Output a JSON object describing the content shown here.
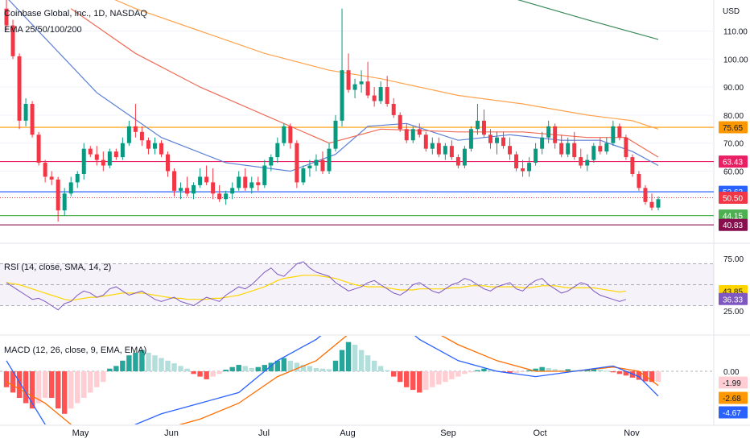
{
  "chart_data": {
    "type": "candlestick",
    "title": "Coinbase Global, Inc., 1D, NASDAQ",
    "indicator_legend": "EMA 25/50/100/200",
    "currency": "USD",
    "x_labels": [
      "May",
      "Jun",
      "Jul",
      "Aug",
      "Sep",
      "Oct",
      "Nov"
    ],
    "price_axis": {
      "ticks": [
        110,
        100,
        90,
        80,
        70,
        60
      ],
      "tick_labels": [
        "110.00",
        "100.00",
        "90.00",
        "80.00",
        "70.00",
        "60.00"
      ]
    },
    "horizontal_levels": [
      {
        "value": 75.65,
        "label": "75.65",
        "color": "#ff9800"
      },
      {
        "value": 63.43,
        "label": "63.43",
        "color": "#e91e63"
      },
      {
        "value": 52.63,
        "label": "52.63",
        "color": "#2962ff"
      },
      {
        "value": 44.15,
        "label": "44.15",
        "color": "#4caf50"
      },
      {
        "value": 40.83,
        "label": "40.83",
        "color": "#880e4f"
      }
    ],
    "last_price": {
      "value": 50.5,
      "label": "50.50",
      "color": "#f23645"
    },
    "candles": [
      [
        118,
        122,
        110,
        112
      ],
      [
        112,
        114,
        100,
        101
      ],
      [
        101,
        102,
        75,
        78
      ],
      [
        78,
        86,
        76,
        84
      ],
      [
        84,
        85,
        72,
        73
      ],
      [
        73,
        74,
        62,
        63
      ],
      [
        63,
        64,
        56,
        58
      ],
      [
        58,
        60,
        55,
        57
      ],
      [
        57,
        58,
        42,
        46
      ],
      [
        46,
        54,
        44,
        52
      ],
      [
        52,
        58,
        51,
        56
      ],
      [
        56,
        60,
        54,
        59
      ],
      [
        59,
        70,
        57,
        68
      ],
      [
        68,
        69,
        65,
        66
      ],
      [
        66,
        69,
        62,
        64
      ],
      [
        64,
        67,
        60,
        62
      ],
      [
        62,
        68,
        61,
        67
      ],
      [
        67,
        68,
        64,
        65
      ],
      [
        65,
        72,
        64,
        70
      ],
      [
        70,
        78,
        69,
        76
      ],
      [
        76,
        84,
        72,
        74
      ],
      [
        74,
        76,
        69,
        71
      ],
      [
        71,
        72,
        66,
        68
      ],
      [
        68,
        72,
        66,
        70
      ],
      [
        70,
        71,
        65,
        66
      ],
      [
        66,
        67,
        58,
        60
      ],
      [
        60,
        61,
        51,
        53
      ],
      [
        53,
        56,
        50,
        54
      ],
      [
        54,
        58,
        51,
        52
      ],
      [
        52,
        56,
        50,
        55
      ],
      [
        55,
        61,
        54,
        58
      ],
      [
        58,
        62,
        55,
        56
      ],
      [
        56,
        61,
        50,
        52
      ],
      [
        52,
        55,
        49,
        50
      ],
      [
        50,
        53,
        48,
        52
      ],
      [
        52,
        56,
        50,
        54
      ],
      [
        54,
        60,
        53,
        58
      ],
      [
        58,
        61,
        53,
        54
      ],
      [
        54,
        58,
        52,
        56
      ],
      [
        56,
        58,
        53,
        55
      ],
      [
        55,
        64,
        54,
        62
      ],
      [
        62,
        66,
        60,
        65
      ],
      [
        65,
        72,
        63,
        70
      ],
      [
        70,
        77,
        69,
        76
      ],
      [
        76,
        77,
        68,
        70
      ],
      [
        70,
        71,
        54,
        56
      ],
      [
        56,
        62,
        55,
        61
      ],
      [
        61,
        64,
        58,
        62
      ],
      [
        62,
        66,
        60,
        64
      ],
      [
        64,
        67,
        59,
        60
      ],
      [
        60,
        70,
        59,
        68
      ],
      [
        68,
        80,
        67,
        78
      ],
      [
        78,
        118,
        76,
        96
      ],
      [
        96,
        102,
        88,
        89
      ],
      [
        89,
        93,
        86,
        91
      ],
      [
        91,
        96,
        88,
        92
      ],
      [
        92,
        99,
        86,
        87
      ],
      [
        87,
        90,
        83,
        85
      ],
      [
        85,
        92,
        84,
        90
      ],
      [
        90,
        94,
        83,
        84
      ],
      [
        84,
        86,
        79,
        80
      ],
      [
        80,
        81,
        74,
        75
      ],
      [
        75,
        77,
        70,
        71
      ],
      [
        71,
        76,
        70,
        75
      ],
      [
        75,
        77,
        72,
        73
      ],
      [
        73,
        74,
        67,
        68
      ],
      [
        68,
        72,
        66,
        70
      ],
      [
        70,
        72,
        65,
        66
      ],
      [
        66,
        70,
        64,
        69
      ],
      [
        69,
        71,
        64,
        65
      ],
      [
        65,
        66,
        61,
        62
      ],
      [
        62,
        69,
        61,
        68
      ],
      [
        68,
        76,
        67,
        75
      ],
      [
        75,
        84,
        73,
        78
      ],
      [
        78,
        82,
        72,
        73
      ],
      [
        73,
        75,
        68,
        70
      ],
      [
        70,
        74,
        66,
        72
      ],
      [
        72,
        74,
        68,
        69
      ],
      [
        69,
        72,
        64,
        66
      ],
      [
        66,
        67,
        60,
        61
      ],
      [
        61,
        64,
        58,
        60
      ],
      [
        60,
        65,
        58,
        63
      ],
      [
        63,
        70,
        62,
        68
      ],
      [
        68,
        74,
        66,
        72
      ],
      [
        72,
        78,
        70,
        76
      ],
      [
        76,
        77,
        68,
        70
      ],
      [
        70,
        73,
        65,
        66
      ],
      [
        66,
        72,
        65,
        70
      ],
      [
        70,
        74,
        64,
        65
      ],
      [
        65,
        68,
        61,
        62
      ],
      [
        62,
        66,
        60,
        64
      ],
      [
        64,
        70,
        63,
        69
      ],
      [
        69,
        72,
        66,
        67
      ],
      [
        67,
        72,
        66,
        70
      ],
      [
        70,
        78,
        69,
        76
      ],
      [
        76,
        77,
        71,
        72
      ],
      [
        72,
        73,
        64,
        65
      ],
      [
        65,
        66,
        58,
        59
      ],
      [
        59,
        60,
        53,
        54
      ],
      [
        54,
        55,
        48,
        49
      ],
      [
        49,
        52,
        46,
        47
      ],
      [
        47,
        51,
        46,
        50
      ]
    ],
    "ema_lines": [
      {
        "name": "EMA 25",
        "color": "#5b7fd6",
        "values": [
          [
            0,
            122
          ],
          [
            14,
            88
          ],
          [
            24,
            72
          ],
          [
            34,
            63
          ],
          [
            44,
            60
          ],
          [
            51,
            66
          ],
          [
            56,
            76
          ],
          [
            62,
            77
          ],
          [
            70,
            71
          ],
          [
            78,
            73
          ],
          [
            86,
            71
          ],
          [
            92,
            71
          ],
          [
            97,
            67
          ],
          [
            101,
            62
          ]
        ]
      },
      {
        "name": "EMA 50",
        "color": "#ef6c57",
        "values": [
          [
            10,
            118
          ],
          [
            20,
            102
          ],
          [
            30,
            90
          ],
          [
            40,
            80
          ],
          [
            50,
            70
          ],
          [
            58,
            75
          ],
          [
            70,
            74
          ],
          [
            80,
            74
          ],
          [
            90,
            72
          ],
          [
            96,
            72
          ],
          [
            101,
            65
          ]
        ]
      },
      {
        "name": "EMA 100",
        "color": "#ffa24d",
        "values": [
          [
            10,
            128
          ],
          [
            20,
            118
          ],
          [
            30,
            110
          ],
          [
            40,
            102
          ],
          [
            50,
            96
          ],
          [
            58,
            93
          ],
          [
            70,
            87
          ],
          [
            80,
            84
          ],
          [
            90,
            80
          ],
          [
            97,
            78
          ],
          [
            101,
            75
          ]
        ]
      },
      {
        "name": "EMA 200",
        "color": "#3c8a5a",
        "values": [
          [
            78,
            122
          ],
          [
            90,
            114
          ],
          [
            101,
            107
          ]
        ]
      }
    ],
    "rsi": {
      "legend": "RSI (14, close, SMA, 14, 2)",
      "ticks": [
        75,
        25
      ],
      "tick_labels": [
        "75.00",
        "25.00"
      ],
      "upper_band": 70,
      "lower_band": 30,
      "rsi_line_color": "#7e57c2",
      "sma_color": "#ffd500",
      "badge_sma": {
        "value": 43.85,
        "label": "43.85",
        "color": "#ffd500"
      },
      "badge_rsi": {
        "value": 36.33,
        "label": "36.33",
        "color": "#7e57c2"
      },
      "rsi_values": [
        52,
        48,
        44,
        40,
        36,
        37,
        34,
        30,
        26,
        32,
        34,
        40,
        44,
        42,
        38,
        40,
        46,
        48,
        44,
        40,
        42,
        44,
        40,
        36,
        34,
        36,
        38,
        34,
        32,
        30,
        34,
        38,
        36,
        34,
        40,
        44,
        48,
        46,
        50,
        56,
        62,
        66,
        60,
        58,
        64,
        70,
        72,
        66,
        62,
        60,
        58,
        52,
        48,
        44,
        46,
        48,
        52,
        54,
        50,
        46,
        42,
        40,
        44,
        50,
        52,
        48,
        44,
        42,
        46,
        50,
        52,
        56,
        54,
        50,
        46,
        44,
        48,
        50,
        52,
        46,
        44,
        50,
        54,
        56,
        50,
        46,
        42,
        44,
        48,
        52,
        50,
        44,
        40,
        38,
        36,
        34,
        36
      ],
      "sma_values": [
        52,
        51,
        50,
        48,
        46,
        44,
        42,
        40,
        38,
        36,
        35,
        36,
        37,
        38,
        38,
        39,
        40,
        41,
        42,
        42,
        42,
        42,
        41,
        40,
        39,
        38,
        37,
        37,
        36,
        36,
        36,
        36,
        37,
        37,
        38,
        39,
        40,
        42,
        44,
        46,
        48,
        51,
        54,
        56,
        57,
        58,
        59,
        59,
        59,
        58,
        57,
        56,
        54,
        52,
        50,
        49,
        48,
        48,
        48,
        47,
        46,
        45,
        45,
        45,
        46,
        46,
        46,
        46,
        46,
        47,
        47,
        48,
        49,
        49,
        49,
        48,
        48,
        48,
        48,
        48,
        47,
        47,
        48,
        49,
        49,
        49,
        48,
        47,
        47,
        47,
        47,
        47,
        46,
        45,
        44,
        43,
        44
      ]
    },
    "macd": {
      "legend": "MACD (12, 26, close, 9, EMA, EMA)",
      "zero_label": "0.00",
      "macd_color": "#2962ff",
      "signal_color": "#ff6d00",
      "badge_hist": {
        "value": -1.99,
        "label": "-1.99",
        "color": "#ffcdd2"
      },
      "badge_signal": {
        "value": -2.68,
        "label": "-2.68",
        "color": "#ff9800"
      },
      "badge_macd": {
        "value": -4.67,
        "label": "-4.67",
        "color": "#2962ff"
      },
      "histogram": [
        -3,
        -4,
        -5,
        -6,
        -7,
        -6,
        -5,
        -5,
        -7,
        -8,
        -7,
        -6,
        -5,
        -4,
        -3,
        -2,
        0.5,
        1,
        2,
        3,
        3.5,
        4,
        3.5,
        3,
        2.5,
        2,
        1.5,
        1,
        0.5,
        -0.5,
        -1,
        -1.5,
        -1,
        -0.5,
        0.3,
        0.8,
        1.2,
        1,
        0.6,
        0.8,
        1.2,
        1.6,
        2,
        2.5,
        2,
        1.6,
        1.2,
        1,
        0.6,
        0.5,
        0.4,
        2,
        4,
        5.5,
        5,
        4,
        3,
        2,
        1,
        0.2,
        -1,
        -2,
        -3,
        -3.5,
        -4,
        -3.5,
        -3,
        -2.5,
        -2,
        -1.5,
        -1,
        -0.5,
        -0.2,
        0.2,
        0.5,
        0.3,
        0.1,
        -0.2,
        -0.4,
        -0.3,
        -0.1,
        0.2,
        0.5,
        0.8,
        0.6,
        0.4,
        0.2,
        0.4,
        0.2,
        0.1,
        0.3,
        0.5,
        0.3,
        0.1,
        -0.2,
        -0.5,
        -0.8,
        -1.2,
        -1.6,
        -1.9,
        -2,
        -1.99
      ],
      "macd_line": [
        [
          0,
          2
        ],
        [
          6,
          -10
        ],
        [
          12,
          -14
        ],
        [
          18,
          -11
        ],
        [
          24,
          -8
        ],
        [
          30,
          -6
        ],
        [
          36,
          -4
        ],
        [
          42,
          2
        ],
        [
          48,
          6
        ],
        [
          54,
          12
        ],
        [
          58,
          12
        ],
        [
          64,
          6
        ],
        [
          70,
          2
        ],
        [
          76,
          0
        ],
        [
          82,
          -1
        ],
        [
          88,
          0
        ],
        [
          94,
          1
        ],
        [
          98,
          -1
        ],
        [
          101,
          -4.67
        ]
      ],
      "signal_line": [
        [
          0,
          -2
        ],
        [
          6,
          -6
        ],
        [
          12,
          -12
        ],
        [
          18,
          -13
        ],
        [
          24,
          -11
        ],
        [
          30,
          -9
        ],
        [
          36,
          -6
        ],
        [
          42,
          -1
        ],
        [
          48,
          2
        ],
        [
          54,
          8
        ],
        [
          58,
          12
        ],
        [
          64,
          9
        ],
        [
          70,
          5
        ],
        [
          76,
          2
        ],
        [
          82,
          0
        ],
        [
          88,
          0
        ],
        [
          94,
          0.8
        ],
        [
          98,
          0
        ],
        [
          101,
          -2.68
        ]
      ]
    }
  }
}
